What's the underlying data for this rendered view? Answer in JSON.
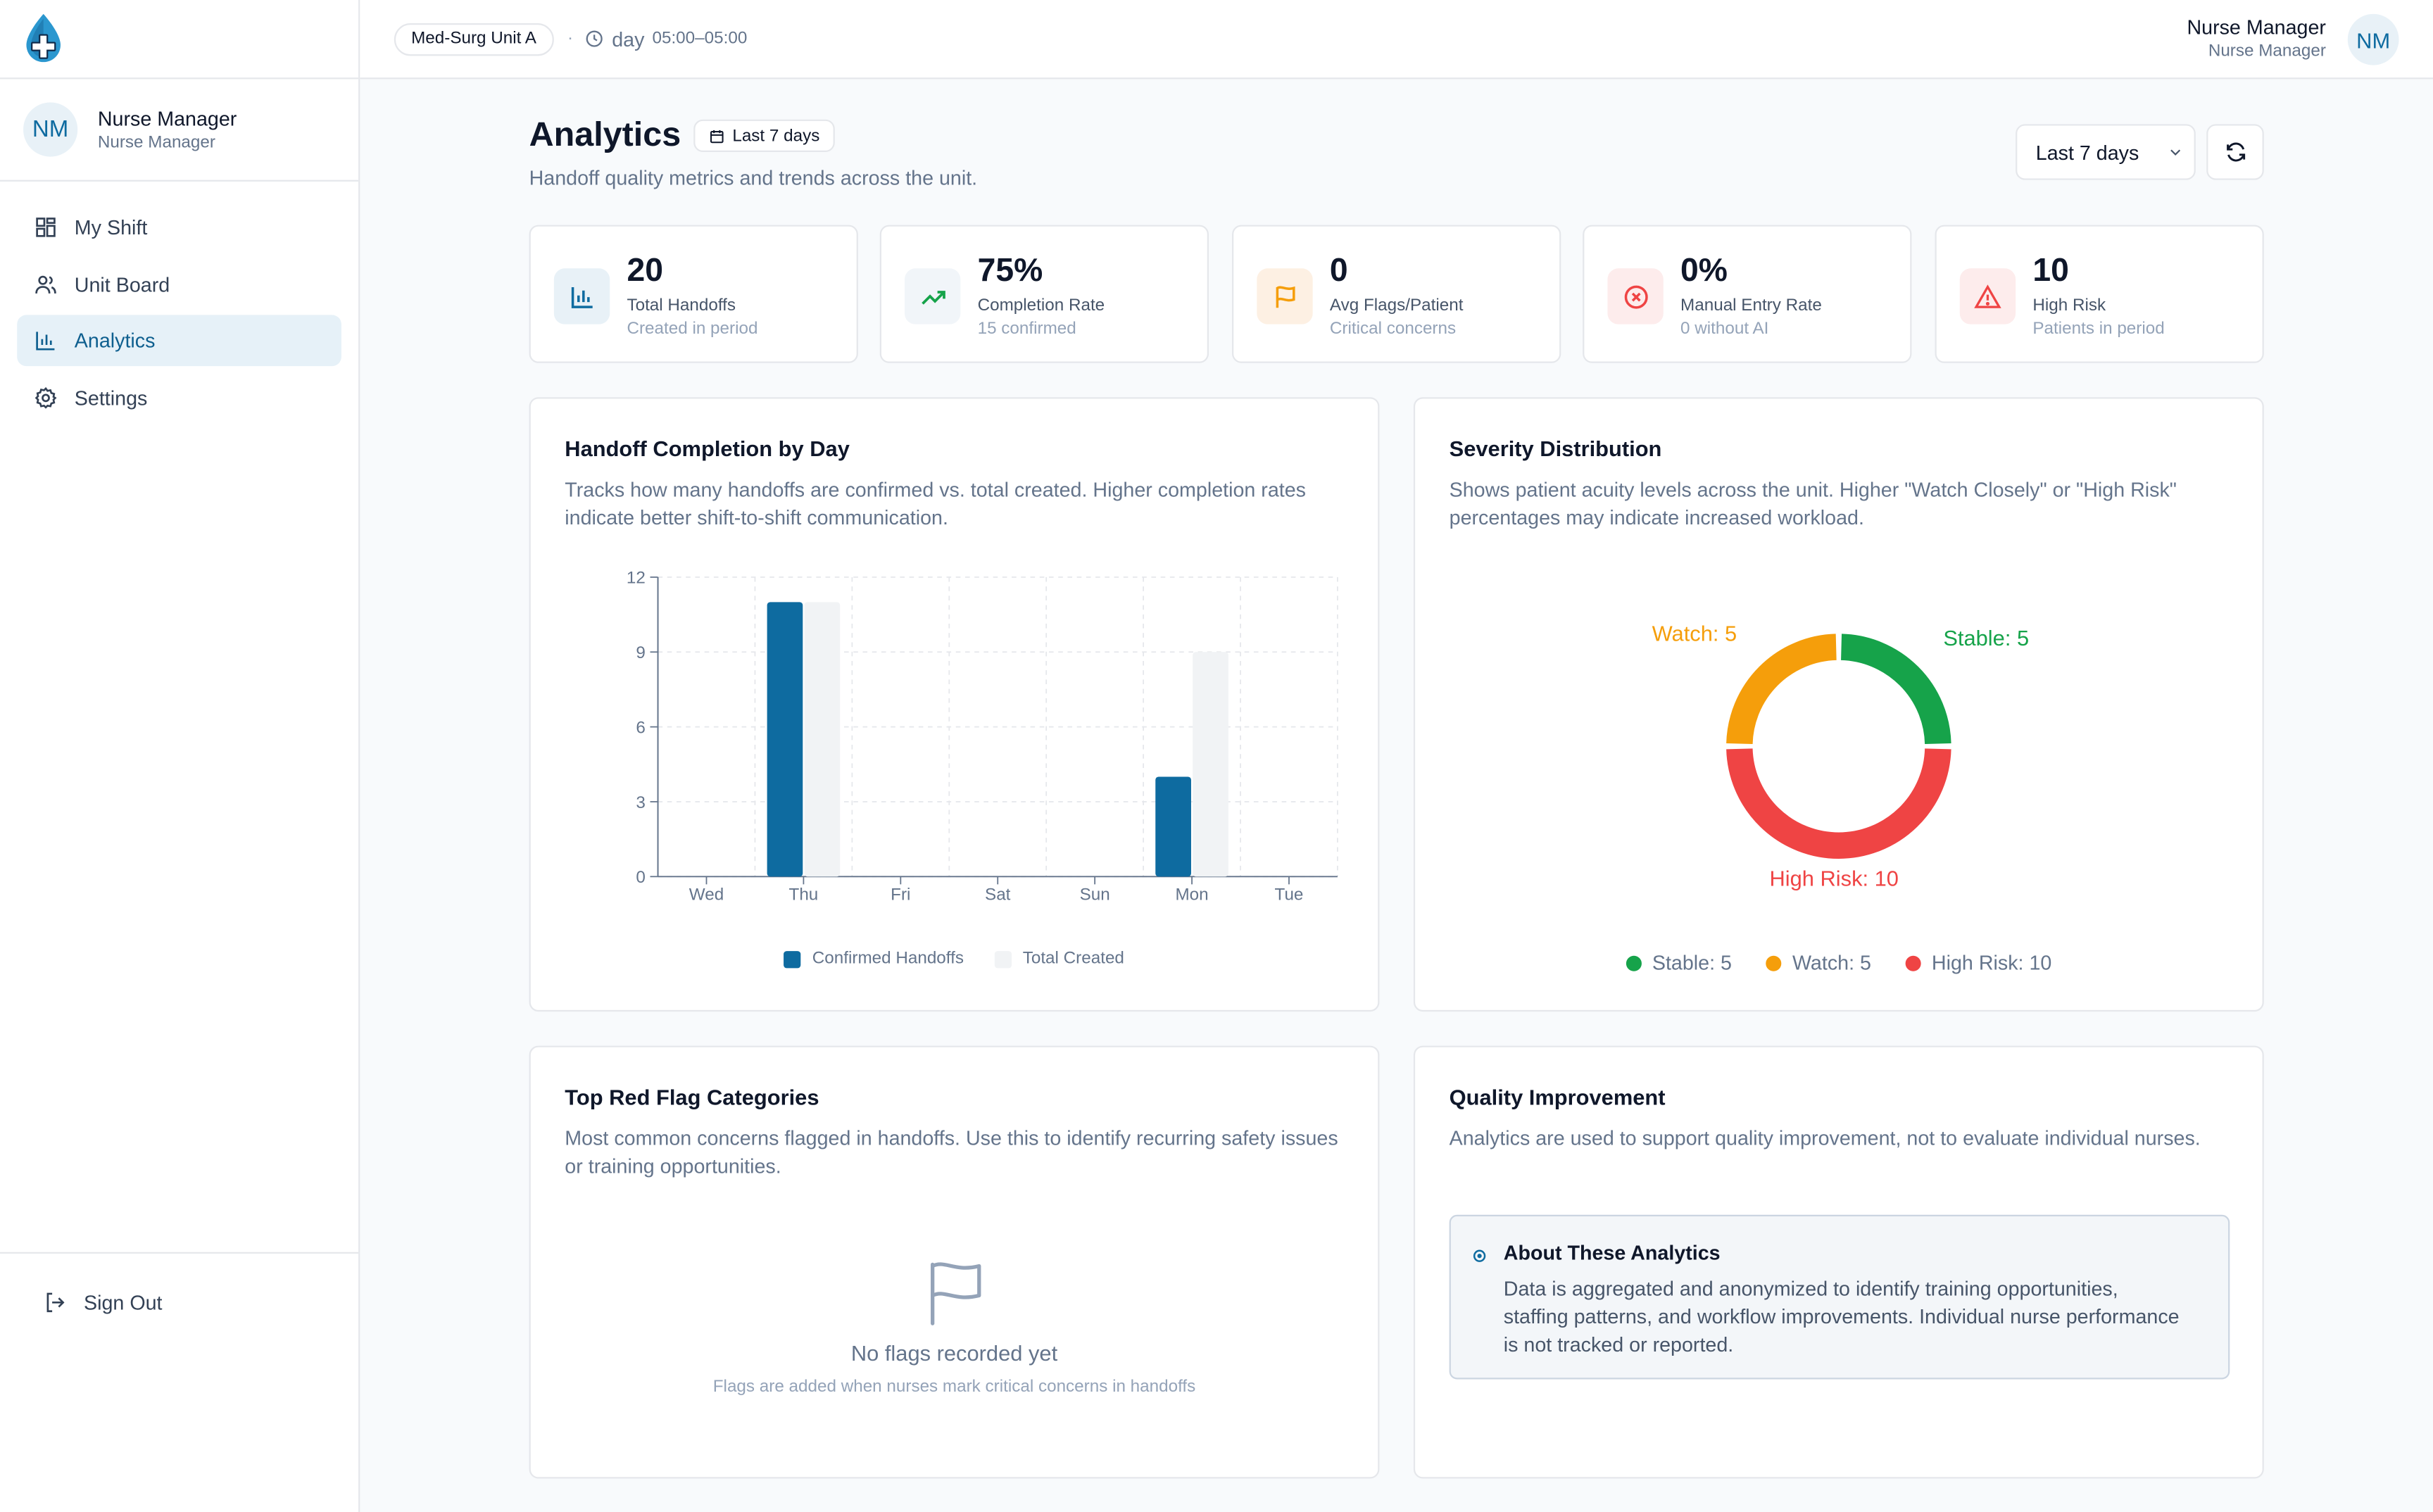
{
  "sidebar": {
    "user": {
      "initials": "NM",
      "name": "Nurse Manager",
      "role": "Nurse Manager"
    },
    "nav": [
      {
        "label": "My Shift",
        "icon": "grid-icon"
      },
      {
        "label": "Unit Board",
        "icon": "users-icon"
      },
      {
        "label": "Analytics",
        "icon": "bar-chart-icon",
        "active": true
      },
      {
        "label": "Settings",
        "icon": "gear-icon"
      }
    ],
    "sign_out": "Sign Out"
  },
  "header": {
    "unit": "Med-Surg Unit A",
    "separator": "·",
    "shift_label": "day",
    "shift_time": "05:00–05:00",
    "user_name": "Nurse Manager",
    "user_role": "Nurse Manager",
    "user_initials": "NM"
  },
  "page": {
    "title": "Analytics",
    "badge": "Last 7 days",
    "subtitle": "Handoff quality metrics and trends across the unit.",
    "range_select": "Last 7 days"
  },
  "stats": [
    {
      "value": "20",
      "label": "Total Handoffs",
      "sub": "Created in period",
      "icon": "bar-chart-icon",
      "color": "#0e6ba0",
      "bg": "#e8f1f7"
    },
    {
      "value": "75%",
      "label": "Completion Rate",
      "sub": "15 confirmed",
      "icon": "trending-up-icon",
      "color": "#16a34a",
      "bg": "#f1f5f9"
    },
    {
      "value": "0",
      "label": "Avg Flags/Patient",
      "sub": "Critical concerns",
      "icon": "flag-icon",
      "color": "#f59e0b",
      "bg": "#fdf0e3"
    },
    {
      "value": "0%",
      "label": "Manual Entry Rate",
      "sub": "0 without AI",
      "icon": "x-circle-icon",
      "color": "#ef4444",
      "bg": "#fdecec"
    },
    {
      "value": "10",
      "label": "High Risk",
      "sub": "Patients in period",
      "icon": "alert-triangle-icon",
      "color": "#ef4444",
      "bg": "#fdecec"
    }
  ],
  "completion_card": {
    "title": "Handoff Completion by Day",
    "desc": "Tracks how many handoffs are confirmed vs. total created. Higher completion rates indicate better shift-to-shift communication."
  },
  "severity_card": {
    "title": "Severity Distribution",
    "desc": "Shows patient acuity levels across the unit. Higher \"Watch Closely\" or \"High Risk\" percentages may indicate increased workload."
  },
  "flags_card": {
    "title": "Top Red Flag Categories",
    "desc": "Most common concerns flagged in handoffs. Use this to identify recurring safety issues or training opportunities.",
    "empty_title": "No flags recorded yet",
    "empty_sub": "Flags are added when nurses mark critical concerns in handoffs"
  },
  "quality_card": {
    "title": "Quality Improvement",
    "desc": "Analytics are used to support quality improvement, not to evaluate individual nurses.",
    "info_title": "About These Analytics",
    "info_body": "Data is aggregated and anonymized to identify training opportunities, staffing patterns, and workflow improvements. Individual nurse performance is not tracked or reported."
  },
  "chart_data": [
    {
      "type": "bar",
      "title": "Handoff Completion by Day",
      "categories": [
        "Wed",
        "Thu",
        "Fri",
        "Sat",
        "Sun",
        "Mon",
        "Tue"
      ],
      "series": [
        {
          "name": "Confirmed Handoffs",
          "values": [
            0,
            11,
            0,
            0,
            0,
            4,
            0
          ],
          "color": "#0e6ba0"
        },
        {
          "name": "Total Created",
          "values": [
            0,
            11,
            0,
            0,
            0,
            9,
            0
          ],
          "color": "#f1f3f5"
        }
      ],
      "yticks": [
        0,
        3,
        6,
        9,
        12
      ],
      "ylim": [
        0,
        12
      ],
      "grid": true,
      "legend": "bottom"
    },
    {
      "type": "pie",
      "title": "Severity Distribution",
      "slices": [
        {
          "name": "Stable",
          "value": 5,
          "label": "Stable: 5",
          "color": "#16a34a"
        },
        {
          "name": "High Risk",
          "value": 10,
          "label": "High Risk: 10",
          "color": "#ef4444"
        },
        {
          "name": "Watch",
          "value": 5,
          "label": "Watch: 5",
          "color": "#f59e0b"
        }
      ],
      "legend": "bottom"
    }
  ]
}
